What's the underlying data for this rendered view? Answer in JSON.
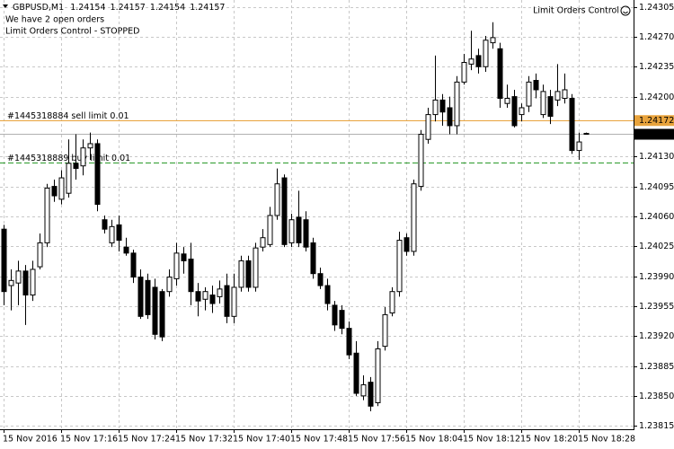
{
  "chart_data": {
    "type": "candlestick",
    "symbol": "GBPUSD,M1",
    "header_ohlc": [
      1.24154,
      1.24157,
      1.24154,
      1.24157
    ],
    "comments": [
      "We have 2 open orders",
      "Limit Orders Control - STOPPED"
    ],
    "indicator_name": "Limit Orders Control",
    "categories": [
      "15 Nov 2016",
      null,
      null,
      null,
      null,
      null,
      null,
      null,
      "15 Nov 17:16",
      null,
      null,
      null,
      null,
      null,
      null,
      null,
      "15 Nov 17:24",
      null,
      null,
      null,
      null,
      null,
      null,
      null,
      "15 Nov 17:32",
      null,
      null,
      null,
      null,
      null,
      null,
      null,
      "15 Nov 17:40",
      null,
      null,
      null,
      null,
      null,
      null,
      null,
      "15 Nov 17:48",
      null,
      null,
      null,
      null,
      null,
      null,
      null,
      "15 Nov 17:56",
      null,
      null,
      null,
      null,
      null,
      null,
      null,
      "15 Nov 18:04",
      null,
      null,
      null,
      null,
      null,
      null,
      null,
      "15 Nov 18:12",
      null,
      null,
      null,
      null,
      null,
      null,
      null,
      "15 Nov 18:20",
      null,
      null,
      null,
      null,
      null,
      null,
      null,
      "15 Nov 18:28",
      null
    ],
    "series": [
      {
        "bull_color": "#ffffff",
        "bear_color": "#000000",
        "outline_color": "#000000",
        "open": [
          1.24045,
          1.23979,
          1.23982,
          1.23996,
          1.23968,
          1.24001,
          1.24029,
          1.24095,
          1.2408,
          1.24087,
          1.24122,
          1.24119,
          1.2414,
          1.24145,
          1.24056,
          1.24029,
          1.2405,
          1.24024,
          1.24017,
          1.23989,
          1.23985,
          1.23977,
          1.23972,
          1.23972,
          1.23987,
          1.24016,
          1.2401,
          1.23972,
          1.23963,
          1.23968,
          1.23966,
          1.23979,
          1.23943,
          1.23977,
          1.24008,
          1.23977,
          1.24024,
          1.24027,
          1.24061,
          1.24105,
          1.24029,
          1.24059,
          1.24056,
          1.24029,
          1.23993,
          1.23979,
          1.23956,
          1.2395,
          1.23929,
          1.239,
          1.2385,
          1.23866,
          1.23842,
          1.23908,
          1.23947,
          1.23972,
          1.24035,
          1.24019,
          1.24095,
          1.2415,
          1.24179,
          1.24196,
          1.24187,
          1.24166,
          1.24217,
          1.24238,
          1.24248,
          1.24235,
          1.24263,
          1.24256,
          1.24192,
          1.242,
          1.24179,
          1.24189,
          1.24219,
          1.24179,
          1.242,
          1.24196,
          1.24198,
          1.24198,
          1.24137,
          1.24156
        ],
        "high": [
          1.2405,
          1.23998,
          1.24008,
          1.24003,
          1.24008,
          1.2404,
          1.24098,
          1.24103,
          1.24114,
          1.2415,
          1.24156,
          1.2415,
          1.24158,
          1.2415,
          1.24061,
          1.24056,
          1.24061,
          1.24035,
          1.24021,
          1.23998,
          1.23993,
          1.23987,
          1.23975,
          1.23998,
          1.24029,
          1.24024,
          1.24029,
          1.23982,
          1.23977,
          1.23979,
          1.23985,
          1.23993,
          1.23993,
          1.24014,
          1.24014,
          1.24029,
          1.24045,
          1.24071,
          1.24116,
          1.24109,
          1.24063,
          1.2409,
          1.24066,
          1.24035,
          1.24,
          1.23987,
          1.23961,
          1.23956,
          1.23937,
          1.23914,
          1.23874,
          1.23872,
          1.23914,
          1.23954,
          1.23977,
          1.24042,
          1.2404,
          1.24103,
          1.24161,
          1.24187,
          1.24248,
          1.24203,
          1.242,
          1.24224,
          1.2425,
          1.24277,
          1.24256,
          1.24271,
          1.24287,
          1.24263,
          1.24214,
          1.24208,
          1.24192,
          1.24224,
          1.24227,
          1.24214,
          1.24208,
          1.24238,
          1.24227,
          1.24203,
          1.24158,
          1.24158
        ],
        "low": [
          1.23956,
          1.2395,
          1.23956,
          1.23933,
          1.23961,
          1.23998,
          1.24024,
          1.24077,
          1.24074,
          1.24082,
          1.24103,
          1.24108,
          1.24126,
          1.24066,
          1.2404,
          1.24024,
          1.24019,
          1.24014,
          1.23982,
          1.2394,
          1.2394,
          1.23916,
          1.23914,
          1.23966,
          1.23979,
          1.23993,
          1.23956,
          1.23943,
          1.2395,
          1.23947,
          1.23958,
          1.23935,
          1.23935,
          1.23972,
          1.23972,
          1.23972,
          1.24019,
          1.24024,
          1.24056,
          1.24024,
          1.24024,
          1.24024,
          1.24019,
          1.23987,
          1.23975,
          1.2395,
          1.23926,
          1.23922,
          1.23893,
          1.2385,
          1.23845,
          1.23832,
          1.23838,
          1.23903,
          1.23943,
          1.23966,
          1.24014,
          1.24014,
          1.2409,
          1.24145,
          1.24171,
          1.24166,
          1.24156,
          1.24156,
          1.24214,
          1.24231,
          1.24227,
          1.24229,
          1.24256,
          1.24187,
          1.24187,
          1.24164,
          1.24171,
          1.24182,
          1.24198,
          1.24175,
          1.24168,
          1.24189,
          1.24192,
          1.24133,
          1.24126,
          1.24156
        ],
        "close": [
          1.23972,
          1.23985,
          1.23996,
          1.23968,
          1.23998,
          1.24029,
          1.24093,
          1.24084,
          1.24105,
          1.24122,
          1.24116,
          1.2414,
          1.24145,
          1.24074,
          1.24045,
          1.24048,
          1.24032,
          1.24017,
          1.23989,
          1.23943,
          1.23945,
          1.23922,
          1.23919,
          1.23989,
          1.24017,
          1.24008,
          1.23972,
          1.23961,
          1.23972,
          1.23958,
          1.23975,
          1.23943,
          1.23977,
          1.24008,
          1.23977,
          1.24023,
          1.24035,
          1.24061,
          1.24098,
          1.24027,
          1.24056,
          1.24029,
          1.24024,
          1.23993,
          1.23979,
          1.23958,
          1.23933,
          1.23929,
          1.23898,
          1.23853,
          1.23863,
          1.23838,
          1.23905,
          1.23945,
          1.23972,
          1.24032,
          1.24019,
          1.24098,
          1.24156,
          1.24179,
          1.24196,
          1.24182,
          1.24166,
          1.24217,
          1.2424,
          1.24244,
          1.24235,
          1.24266,
          1.24269,
          1.24198,
          1.24198,
          1.24166,
          1.24187,
          1.24217,
          1.24208,
          1.24206,
          1.24177,
          1.24206,
          1.24208,
          1.24137,
          1.24147,
          1.24157
        ]
      }
    ],
    "orders": [
      {
        "label": "#1445318884 sell limit 0.01",
        "price": 1.24172,
        "color": "#e8a33c",
        "style": "solid"
      },
      {
        "label": "#1445318889 buy limit 0.01",
        "price": 1.24123,
        "color": "#2a9a2a",
        "style": "dashed"
      }
    ],
    "bid": 1.24157,
    "ylim": [
      1.23811,
      1.24313
    ],
    "yticks": [
      1.24305,
      {
        "value": 1.2427,
        "label": "1.24270"
      },
      1.24235,
      {
        "value": 1.242,
        "label": "1.24200"
      },
      {
        "value": 1.2413,
        "label": "1.24130"
      },
      1.24095,
      {
        "value": 1.2406,
        "label": "1.24060"
      },
      1.24025,
      {
        "value": 1.2399,
        "label": "1.23990"
      },
      1.23955,
      {
        "value": 1.2392,
        "label": "1.23920"
      },
      1.23885,
      {
        "value": 1.2385,
        "label": "1.23850"
      },
      1.23815
    ],
    "grid": true
  }
}
